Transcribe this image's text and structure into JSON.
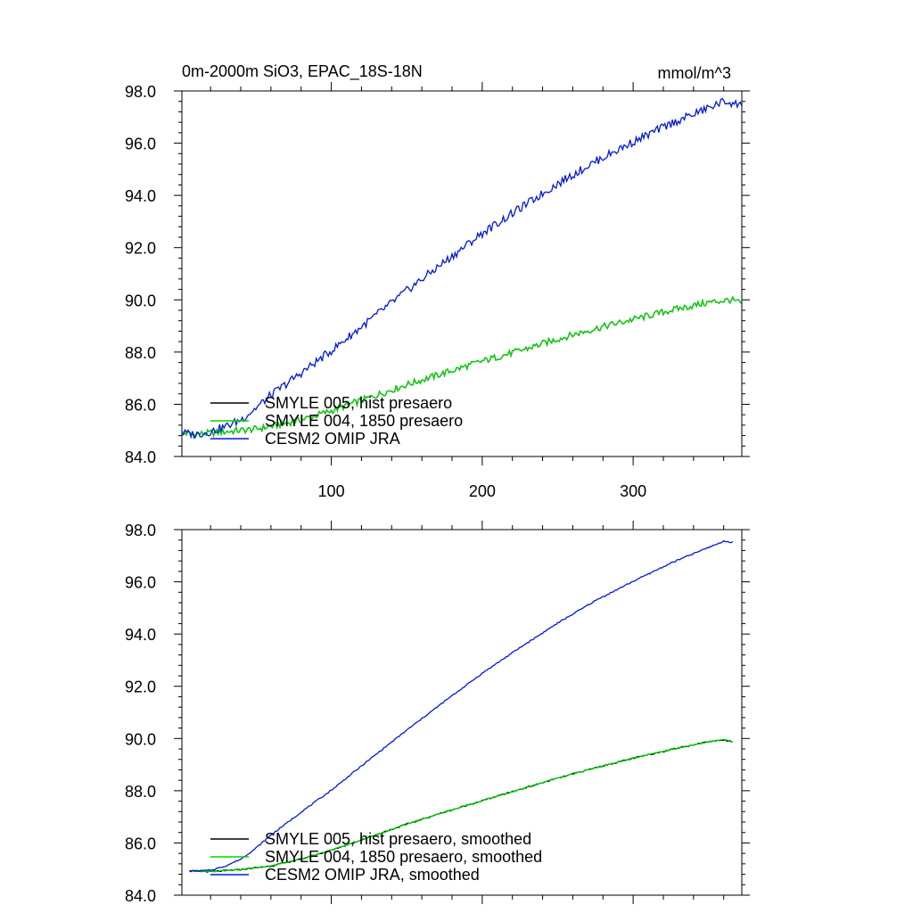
{
  "chart_data": [
    {
      "type": "line",
      "title": "0m-2000m SiO3, EPAC_18S-18N",
      "units": "mmol/m^3",
      "xlim": [
        1,
        372
      ],
      "ylim": [
        84.0,
        98.0
      ],
      "xticks": [
        100,
        200,
        300
      ],
      "xticklabels": [
        "100",
        "200",
        "300"
      ],
      "yticks": [
        84.0,
        86.0,
        88.0,
        90.0,
        92.0,
        94.0,
        96.0,
        98.0
      ],
      "yticklabels": [
        "84.0",
        "86.0",
        "88.0",
        "90.0",
        "92.0",
        "94.0",
        "96.0",
        "98.0"
      ],
      "legend_position": "lower-left",
      "series": [
        {
          "name": "SMYLE 005, hist presaero",
          "color": "#000000",
          "x": [
            1,
            10,
            20,
            30,
            40,
            50,
            60,
            80,
            100,
            125,
            150,
            175,
            200,
            225,
            250,
            275,
            300,
            325,
            350,
            365,
            372
          ],
          "y": [
            84.9,
            84.85,
            84.9,
            84.95,
            85.0,
            85.05,
            85.15,
            85.4,
            85.75,
            86.25,
            86.75,
            87.2,
            87.65,
            88.05,
            88.5,
            88.9,
            89.25,
            89.6,
            89.9,
            90.0,
            89.85
          ]
        },
        {
          "name": "SMYLE 004, 1850 presaero",
          "color": "#00d600",
          "x": [
            1,
            10,
            20,
            30,
            40,
            50,
            60,
            80,
            100,
            125,
            150,
            175,
            200,
            225,
            250,
            275,
            300,
            325,
            350,
            365,
            372
          ],
          "y": [
            84.9,
            84.85,
            84.9,
            84.95,
            85.0,
            85.05,
            85.15,
            85.4,
            85.75,
            86.25,
            86.75,
            87.2,
            87.65,
            88.05,
            88.5,
            88.9,
            89.25,
            89.6,
            89.9,
            90.0,
            89.85
          ]
        },
        {
          "name": "CESM2 OMIP JRA",
          "color": "#0018d6",
          "x": [
            1,
            10,
            20,
            30,
            40,
            50,
            60,
            80,
            100,
            125,
            150,
            175,
            200,
            225,
            250,
            275,
            300,
            325,
            350,
            360,
            365,
            372
          ],
          "y": [
            84.9,
            84.85,
            84.95,
            85.15,
            85.4,
            85.85,
            86.35,
            87.2,
            88.05,
            89.2,
            90.35,
            91.45,
            92.55,
            93.5,
            94.45,
            95.3,
            96.05,
            96.75,
            97.35,
            97.6,
            97.55,
            97.45
          ]
        }
      ]
    },
    {
      "type": "line",
      "xlim": [
        1,
        372
      ],
      "ylim": [
        84.0,
        98.0
      ],
      "xticks": [
        100,
        200,
        300
      ],
      "yticks": [
        84.0,
        86.0,
        88.0,
        90.0,
        92.0,
        94.0,
        96.0,
        98.0
      ],
      "yticklabels": [
        "84.0",
        "86.0",
        "88.0",
        "90.0",
        "92.0",
        "94.0",
        "96.0",
        "98.0"
      ],
      "legend_position": "lower-left",
      "series": [
        {
          "name": "SMYLE 005, hist presaero, smoothed",
          "color": "#000000",
          "x": [
            6,
            20,
            40,
            60,
            80,
            100,
            125,
            150,
            175,
            200,
            225,
            250,
            275,
            300,
            325,
            350,
            360,
            366
          ],
          "y": [
            84.92,
            84.9,
            84.98,
            85.12,
            85.38,
            85.72,
            86.22,
            86.72,
            87.18,
            87.62,
            88.05,
            88.48,
            88.88,
            89.24,
            89.58,
            89.88,
            89.95,
            89.88
          ]
        },
        {
          "name": "SMYLE 004, 1850 presaero, smoothed",
          "color": "#00d600",
          "x": [
            6,
            20,
            40,
            60,
            80,
            100,
            125,
            150,
            175,
            200,
            225,
            250,
            275,
            300,
            325,
            350,
            360,
            366
          ],
          "y": [
            84.92,
            84.9,
            84.98,
            85.12,
            85.38,
            85.72,
            86.22,
            86.72,
            87.18,
            87.62,
            88.05,
            88.48,
            88.88,
            89.24,
            89.58,
            89.88,
            89.95,
            89.88
          ]
        },
        {
          "name": "CESM2 OMIP JRA, smoothed",
          "color": "#0018d6",
          "x": [
            6,
            20,
            30,
            40,
            50,
            60,
            80,
            100,
            125,
            150,
            175,
            200,
            225,
            250,
            275,
            300,
            325,
            350,
            360,
            366
          ],
          "y": [
            84.92,
            84.95,
            85.12,
            85.38,
            85.8,
            86.3,
            87.18,
            88.02,
            89.18,
            90.32,
            91.42,
            92.5,
            93.48,
            94.42,
            95.28,
            96.02,
            96.72,
            97.32,
            97.55,
            97.52
          ]
        }
      ]
    }
  ]
}
